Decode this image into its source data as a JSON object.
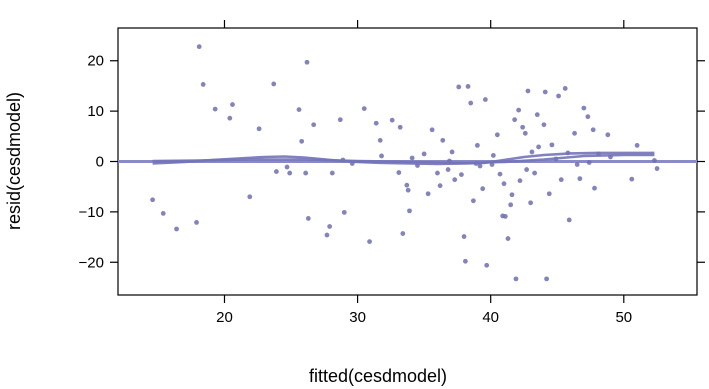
{
  "chart_data": {
    "type": "scatter",
    "xlabel": "fitted(cesdmodel)",
    "ylabel": "resid(cesdmodel)",
    "xlim": [
      12,
      55.5
    ],
    "ylim": [
      -26.5,
      26.5
    ],
    "x_ticks": [
      20,
      30,
      40,
      50
    ],
    "y_ticks": [
      -20,
      -10,
      0,
      10,
      20
    ],
    "x_tick_labels": [
      "20",
      "30",
      "40",
      "50"
    ],
    "y_tick_labels": [
      "−20",
      "−10",
      "0",
      "10",
      "20"
    ],
    "grid": false,
    "reference_line_y": 0,
    "colors": {
      "points": "#6f6fb0",
      "reference": "#8a8ac8",
      "smooth": "#7373b8"
    },
    "points": [
      [
        14.6,
        -7.6
      ],
      [
        15.4,
        -10.3
      ],
      [
        16.4,
        -13.4
      ],
      [
        17.9,
        -12.1
      ],
      [
        18.1,
        22.8
      ],
      [
        18.4,
        15.3
      ],
      [
        20.4,
        8.6
      ],
      [
        20.6,
        11.3
      ],
      [
        21.9,
        -7.0
      ],
      [
        23.7,
        15.4
      ],
      [
        23.9,
        -2.0
      ],
      [
        24.9,
        -2.3
      ],
      [
        25.6,
        10.3
      ],
      [
        25.8,
        4.0
      ],
      [
        26.1,
        -2.3
      ],
      [
        26.2,
        19.7
      ],
      [
        26.3,
        -11.3
      ],
      [
        26.7,
        7.3
      ],
      [
        27.7,
        -14.6
      ],
      [
        27.9,
        -12.9
      ],
      [
        28.1,
        -2.3
      ],
      [
        28.7,
        8.3
      ],
      [
        29.0,
        -10.1
      ],
      [
        30.5,
        10.5
      ],
      [
        30.9,
        -15.9
      ],
      [
        31.4,
        7.6
      ],
      [
        31.7,
        4.2
      ],
      [
        32.6,
        8.2
      ],
      [
        33.2,
        6.8
      ],
      [
        33.4,
        -14.3
      ],
      [
        33.7,
        -4.7
      ],
      [
        33.8,
        -5.7
      ],
      [
        33.9,
        -9.8
      ],
      [
        34.1,
        0.7
      ],
      [
        35.3,
        -6.4
      ],
      [
        35.6,
        6.3
      ],
      [
        36.0,
        -2.3
      ],
      [
        36.4,
        4.2
      ],
      [
        36.8,
        -1.6
      ],
      [
        37.3,
        -3.6
      ],
      [
        37.6,
        14.8
      ],
      [
        37.8,
        -2.6
      ],
      [
        38.0,
        -14.9
      ],
      [
        38.1,
        -19.8
      ],
      [
        38.3,
        14.9
      ],
      [
        38.5,
        11.6
      ],
      [
        38.7,
        -7.8
      ],
      [
        39.0,
        3.2
      ],
      [
        39.2,
        -0.9
      ],
      [
        39.6,
        12.3
      ],
      [
        39.7,
        -20.6
      ],
      [
        40.1,
        -0.6
      ],
      [
        40.5,
        5.3
      ],
      [
        40.9,
        -10.8
      ],
      [
        41.1,
        -10.9
      ],
      [
        41.3,
        -15.3
      ],
      [
        41.5,
        -8.6
      ],
      [
        41.6,
        -6.6
      ],
      [
        41.8,
        8.3
      ],
      [
        41.9,
        -23.3
      ],
      [
        42.1,
        10.2
      ],
      [
        42.4,
        6.8
      ],
      [
        42.6,
        5.6
      ],
      [
        42.8,
        14.0
      ],
      [
        43.0,
        -8.2
      ],
      [
        43.1,
        1.9
      ],
      [
        43.3,
        -2.3
      ],
      [
        43.5,
        9.3
      ],
      [
        44.0,
        7.3
      ],
      [
        44.1,
        13.8
      ],
      [
        44.2,
        -23.3
      ],
      [
        44.4,
        -6.4
      ],
      [
        44.6,
        3.3
      ],
      [
        45.1,
        13.0
      ],
      [
        45.3,
        -3.6
      ],
      [
        45.6,
        14.5
      ],
      [
        45.9,
        -11.6
      ],
      [
        46.3,
        5.6
      ],
      [
        46.7,
        -3.4
      ],
      [
        47.0,
        10.6
      ],
      [
        47.3,
        8.9
      ],
      [
        47.7,
        6.3
      ],
      [
        47.8,
        -5.3
      ],
      [
        48.1,
        1.5
      ],
      [
        48.8,
        5.3
      ],
      [
        50.6,
        -3.5
      ],
      [
        51.0,
        3.2
      ],
      [
        52.3,
        0.2
      ],
      [
        52.5,
        -1.4
      ],
      [
        19.3,
        10.4
      ],
      [
        22.6,
        6.5
      ],
      [
        24.7,
        -1.1
      ],
      [
        29.6,
        -0.4
      ],
      [
        31.8,
        1.1
      ],
      [
        34.5,
        -0.8
      ],
      [
        35.0,
        1.5
      ],
      [
        36.9,
        0.1
      ],
      [
        38.9,
        -0.4
      ],
      [
        40.2,
        1.2
      ],
      [
        40.7,
        -2.5
      ],
      [
        41.0,
        -4.4
      ],
      [
        42.7,
        -1.6
      ],
      [
        43.6,
        2.9
      ],
      [
        44.9,
        0.5
      ],
      [
        45.8,
        1.7
      ],
      [
        46.5,
        -0.6
      ],
      [
        47.4,
        -0.2
      ],
      [
        49.0,
        0.9
      ],
      [
        37.1,
        1.9
      ],
      [
        39.4,
        -5.4
      ],
      [
        42.2,
        -3.8
      ],
      [
        33.1,
        -2.2
      ],
      [
        28.9,
        0.3
      ],
      [
        36.2,
        -4.8
      ]
    ],
    "smooth_line": [
      [
        14.6,
        -0.4
      ],
      [
        17,
        -0.1
      ],
      [
        19,
        0.3
      ],
      [
        21,
        0.6
      ],
      [
        23,
        0.9
      ],
      [
        24.5,
        1.0
      ],
      [
        26,
        0.8
      ],
      [
        28,
        0.3
      ],
      [
        30,
        -0.1
      ],
      [
        32,
        -0.3
      ],
      [
        34,
        -0.4
      ],
      [
        36,
        -0.5
      ],
      [
        38,
        -0.4
      ],
      [
        39.5,
        -0.3
      ],
      [
        41,
        0.3
      ],
      [
        42.5,
        0.9
      ],
      [
        44,
        1.3
      ],
      [
        46,
        1.6
      ],
      [
        48,
        1.7
      ],
      [
        50,
        1.7
      ],
      [
        52.3,
        1.7
      ]
    ],
    "smooth_line_2": [
      [
        14.6,
        0.1
      ],
      [
        18,
        0.2
      ],
      [
        22,
        0.4
      ],
      [
        26,
        0.4
      ],
      [
        30,
        0.1
      ],
      [
        34,
        -0.1
      ],
      [
        38,
        -0.3
      ],
      [
        41,
        -0.1
      ],
      [
        44,
        0.4
      ],
      [
        47,
        1.1
      ],
      [
        50,
        1.3
      ],
      [
        52.3,
        1.3
      ]
    ]
  }
}
